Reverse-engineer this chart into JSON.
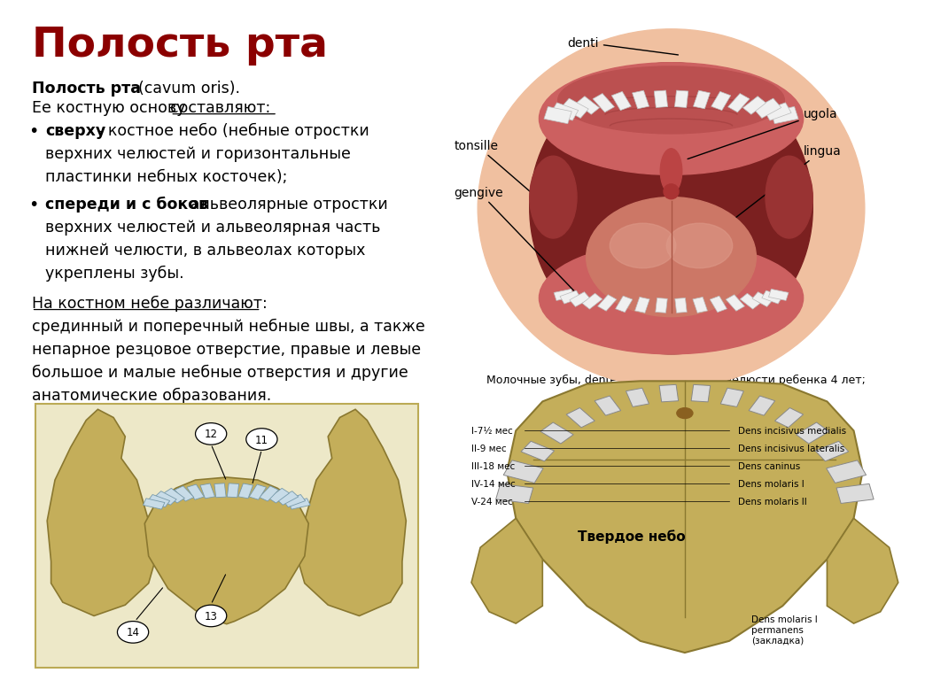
{
  "title": "Полость рта",
  "title_color": "#8B0000",
  "title_fontsize": 34,
  "bg_color": "#FFFFFF",
  "body_fontsize": 12.5,
  "bottom_caption": "Молочные зубы, dentes decidui, верхней челюсти ребенка 4 лет;\n                              вид снизу",
  "tverdoe_label": "Твердое небо",
  "time_labels": [
    "I-7½ мес",
    "II-9 мес",
    "III-18 мес",
    "IV-14 мес",
    "V-24 мес"
  ],
  "latin_labels": [
    "Dens incisivus medialis",
    "Dens incisivus lateralis",
    "Dens caninus",
    "Dens molaris I",
    "Dens molaris II"
  ],
  "bottom_right_label": "Dens molaris I\npermanens\n(закладка)"
}
